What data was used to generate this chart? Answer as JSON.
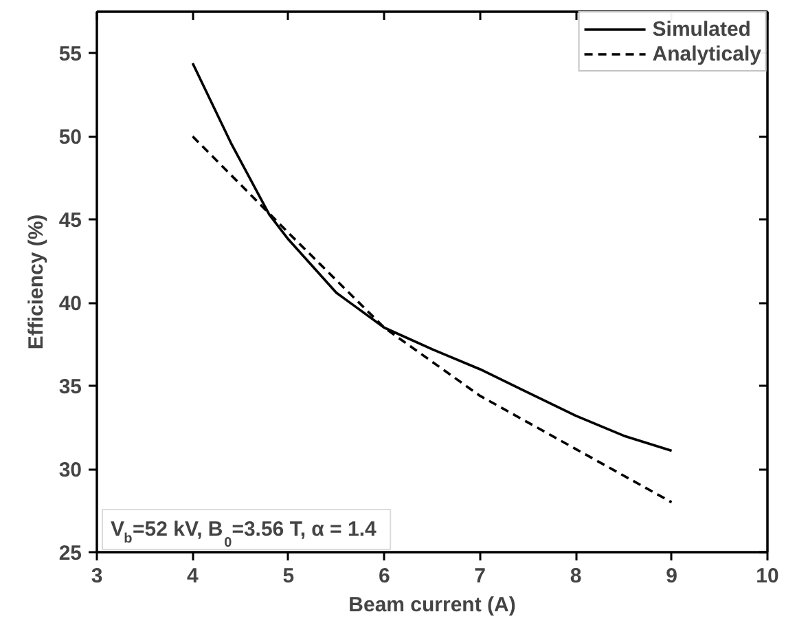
{
  "chart_data": {
    "type": "line",
    "xlabel": "Beam current (A)",
    "ylabel": "Efficiency (%)",
    "x": [
      4,
      4.4,
      4.8,
      5,
      5.5,
      6,
      6.5,
      7,
      7.5,
      8,
      8.5,
      9
    ],
    "series": [
      {
        "name": "Simulated",
        "color": "#000000",
        "line_style": "solid",
        "values": [
          54.4,
          49.6,
          45.3,
          43.8,
          40.6,
          38.5,
          37.2,
          36.0,
          34.6,
          33.2,
          32.0,
          31.1
        ]
      },
      {
        "name": "Analyticaly",
        "color": "#000000",
        "line_style": "dashed",
        "x": [
          4,
          5,
          6,
          7,
          8,
          9
        ],
        "values": [
          50,
          44.2,
          38.5,
          34.4,
          31.2,
          28
        ]
      }
    ],
    "xlim": [
      3,
      10
    ],
    "ylim": [
      25,
      57.5
    ],
    "xticks": [
      3,
      4,
      5,
      6,
      7,
      8,
      9,
      10
    ],
    "yticks": [
      25,
      30,
      35,
      40,
      45,
      50,
      55
    ],
    "annotations": [
      "V$_{b}$=52 kV, B$_{0}$=3.56 T, α = 1.4"
    ],
    "legend": "top right",
    "grid": false,
    "marker": "none"
  }
}
